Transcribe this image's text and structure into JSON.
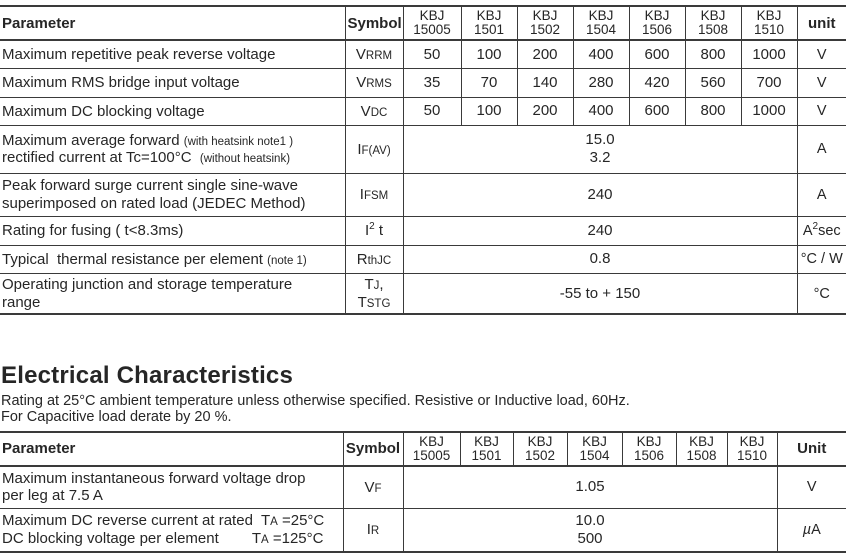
{
  "section": {
    "title": "Electrical Characteristics",
    "subtitle_line1": "Rating at 25°C ambient temperature unless otherwise specified. Resistive or Inductive load, 60Hz.",
    "subtitle_line2": "For Capacitive load derate by 20 %."
  },
  "tables": [
    {
      "id": "maximum-ratings-table",
      "header": {
        "parameter": "Parameter",
        "symbol": "Symbol",
        "models": [
          [
            "KBJ",
            "15005"
          ],
          [
            "KBJ",
            "1501"
          ],
          [
            "KBJ",
            "1502"
          ],
          [
            "KBJ",
            "1504"
          ],
          [
            "KBJ",
            "1506"
          ],
          [
            "KBJ",
            "1508"
          ],
          [
            "KBJ",
            "1510"
          ]
        ],
        "unit": "unit"
      },
      "rows": [
        {
          "param": [
            {
              "t": "Maximum repetitive peak reverse voltage"
            }
          ],
          "symbol": [
            {
              "t": "V"
            },
            {
              "t": "RRM",
              "s": "sm"
            }
          ],
          "values": {
            "kind": "cells",
            "cells": [
              "50",
              "100",
              "200",
              "400",
              "600",
              "800",
              "1000"
            ]
          },
          "unit": [
            {
              "t": "V"
            }
          ]
        },
        {
          "param": [
            {
              "t": "Maximum RMS bridge input voltage"
            }
          ],
          "symbol": [
            {
              "t": "V"
            },
            {
              "t": "RMS",
              "s": "sm"
            }
          ],
          "values": {
            "kind": "cells",
            "cells": [
              "35",
              "70",
              "140",
              "280",
              "420",
              "560",
              "700"
            ]
          },
          "unit": [
            {
              "t": "V"
            }
          ]
        },
        {
          "param": [
            {
              "t": "Maximum DC blocking voltage"
            }
          ],
          "symbol": [
            {
              "t": "V"
            },
            {
              "t": "DC",
              "s": "sm"
            }
          ],
          "values": {
            "kind": "cells",
            "cells": [
              "50",
              "100",
              "200",
              "400",
              "600",
              "800",
              "1000"
            ]
          },
          "unit": [
            {
              "t": "V"
            }
          ]
        },
        {
          "param": [
            {
              "t": "Maximum average forward "
            },
            {
              "t": "(with heatsink note1 )",
              "s": "sm"
            },
            {
              "s": "br"
            },
            {
              "t": "rectified current at Tc=100°C  "
            },
            {
              "t": "(without heatsink)",
              "s": "sm"
            }
          ],
          "symbol": [
            {
              "t": "I"
            },
            {
              "t": "F(AV)",
              "s": "sm"
            }
          ],
          "values": {
            "kind": "merged",
            "lines": [
              "15.0",
              "3.2"
            ]
          },
          "unit": [
            {
              "t": "A"
            }
          ]
        },
        {
          "param": [
            {
              "t": "Peak forward surge current single sine-wave"
            },
            {
              "s": "br"
            },
            {
              "t": "superimposed on rated load (JEDEC Method)"
            }
          ],
          "symbol": [
            {
              "t": "I"
            },
            {
              "t": "FSM",
              "s": "sm"
            }
          ],
          "values": {
            "kind": "merged",
            "lines": [
              "240"
            ]
          },
          "unit": [
            {
              "t": "A"
            }
          ]
        },
        {
          "param": [
            {
              "t": "Rating for fusing ( t<8.3ms)"
            }
          ],
          "symbol": [
            {
              "t": "I"
            },
            {
              "t": "2",
              "s": "sup"
            },
            {
              "t": " t"
            }
          ],
          "values": {
            "kind": "merged",
            "lines": [
              "240"
            ]
          },
          "unit": [
            {
              "t": "A"
            },
            {
              "t": "2",
              "s": "sup"
            },
            {
              "t": "sec"
            }
          ]
        },
        {
          "param": [
            {
              "t": "Typical  thermal resistance per element "
            },
            {
              "t": "(note 1)",
              "s": "sm"
            }
          ],
          "symbol": [
            {
              "t": "R"
            },
            {
              "t": "thJC",
              "s": "sm"
            }
          ],
          "values": {
            "kind": "merged",
            "lines": [
              "0.8"
            ]
          },
          "unit": [
            {
              "t": "°C / W"
            }
          ]
        },
        {
          "param": [
            {
              "t": "Operating junction and storage temperature"
            },
            {
              "s": "br"
            },
            {
              "t": "range"
            }
          ],
          "symbol": [
            {
              "t": "T"
            },
            {
              "t": "J",
              "s": "sm"
            },
            {
              "t": ","
            },
            {
              "s": "br"
            },
            {
              "t": "T"
            },
            {
              "t": "STG",
              "s": "sm"
            }
          ],
          "values": {
            "kind": "merged",
            "lines": [
              "-55 to + 150"
            ]
          },
          "unit": [
            {
              "t": "°C"
            }
          ]
        }
      ]
    },
    {
      "id": "electrical-characteristics-table",
      "header": {
        "parameter": "Parameter",
        "symbol": "Symbol",
        "models": [
          [
            "KBJ",
            "15005"
          ],
          [
            "KBJ",
            "1501"
          ],
          [
            "KBJ",
            "1502"
          ],
          [
            "KBJ",
            "1504"
          ],
          [
            "KBJ",
            "1506"
          ],
          [
            "KBJ",
            "1508"
          ],
          [
            "KBJ",
            "1510"
          ]
        ],
        "unit": "Unit"
      },
      "rows": [
        {
          "param": [
            {
              "t": "Maximum instantaneous forward voltage drop"
            },
            {
              "s": "br"
            },
            {
              "t": "per leg at 7.5 A"
            }
          ],
          "symbol": [
            {
              "t": "V"
            },
            {
              "t": "F",
              "s": "sm"
            }
          ],
          "values": {
            "kind": "merged",
            "lines": [
              "1.05"
            ]
          },
          "unit": [
            {
              "t": "V"
            }
          ]
        },
        {
          "param": [
            {
              "t": "Maximum DC reverse current at rated  T"
            },
            {
              "t": "A",
              "s": "sm"
            },
            {
              "t": " =25°C"
            },
            {
              "s": "br"
            },
            {
              "t": "DC blocking voltage per element        T"
            },
            {
              "t": "A",
              "s": "sm"
            },
            {
              "t": " =125°C"
            }
          ],
          "symbol": [
            {
              "t": "I"
            },
            {
              "t": "R",
              "s": "sm"
            }
          ],
          "values": {
            "kind": "merged",
            "lines": [
              "10.0",
              "500"
            ]
          },
          "unit": [
            {
              "t": "µ",
              "s": "it"
            },
            {
              "t": "A"
            }
          ]
        }
      ]
    }
  ]
}
